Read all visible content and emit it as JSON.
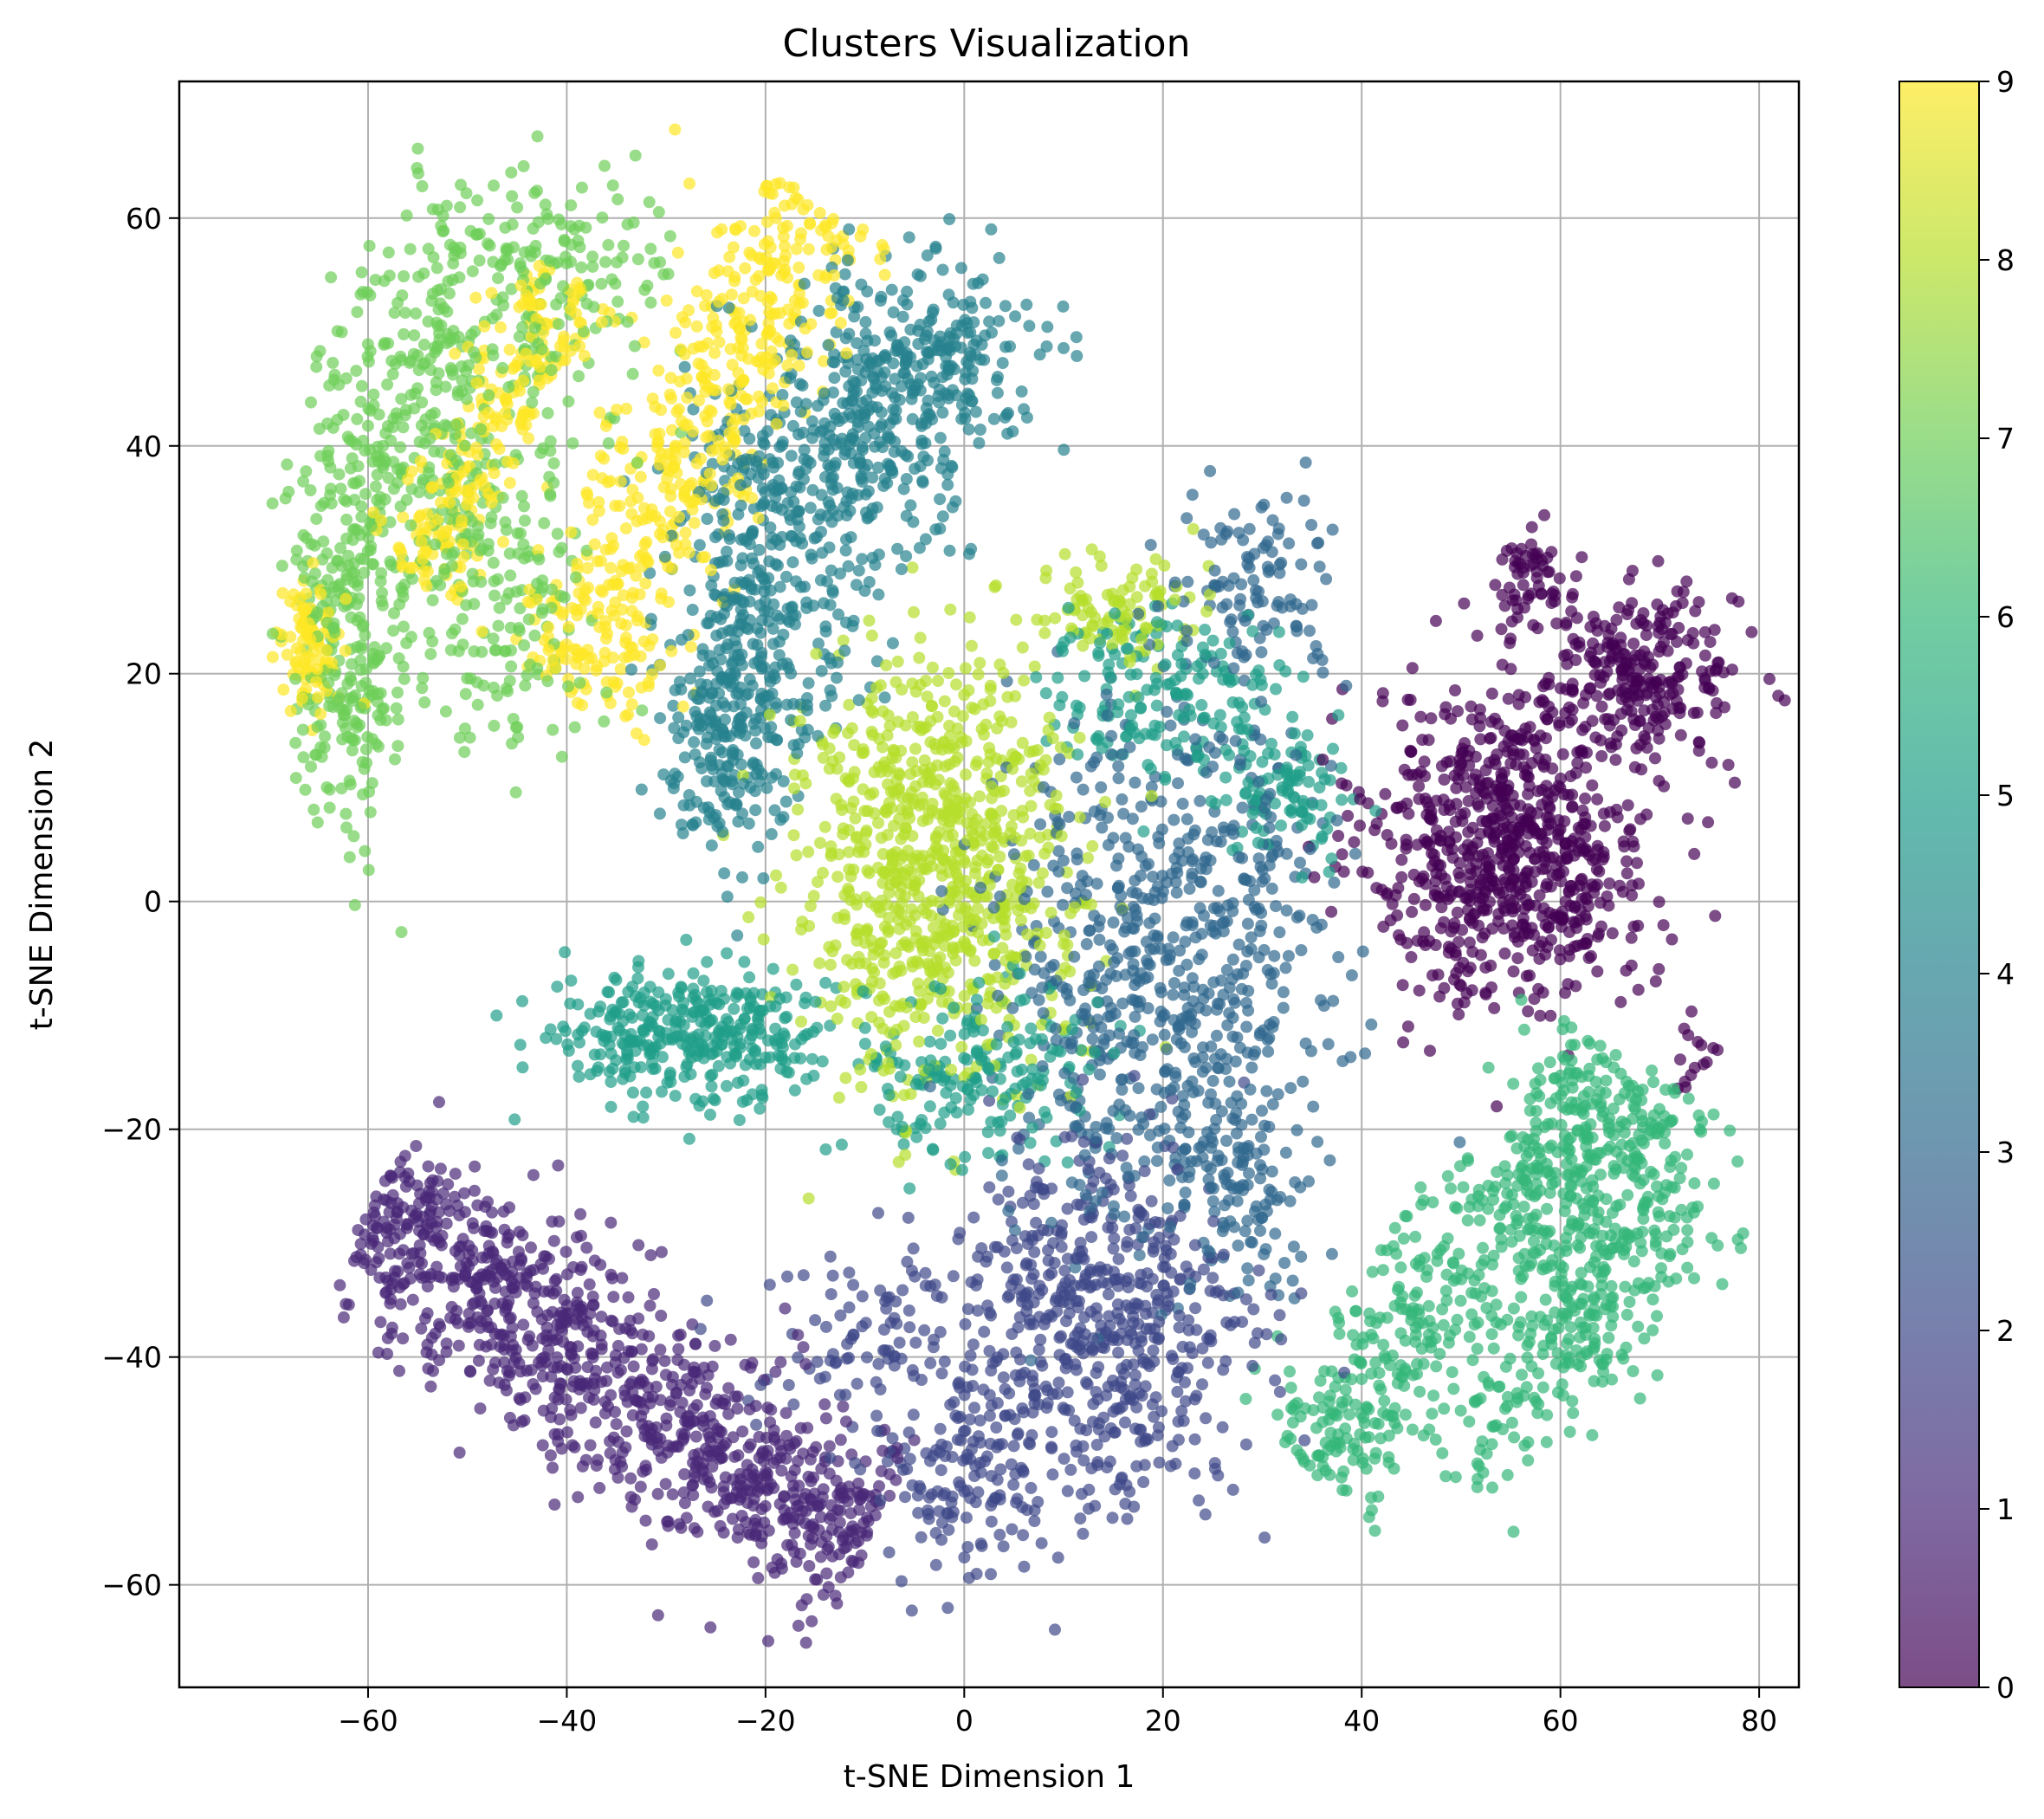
{
  "chart_data": {
    "type": "scatter",
    "title": "Clusters Visualization",
    "xlabel": "t-SNE Dimension 1",
    "ylabel": "t-SNE Dimension 2",
    "xlim": [
      -79,
      84
    ],
    "ylim": [
      -69,
      72
    ],
    "xticks": [
      -60,
      -40,
      -20,
      0,
      20,
      40,
      60,
      80
    ],
    "yticks": [
      -60,
      -40,
      -20,
      0,
      20,
      40,
      60
    ],
    "xtick_labels": [
      "−60",
      "−40",
      "−20",
      "0",
      "20",
      "40",
      "60",
      "80"
    ],
    "ytick_labels": [
      "−60",
      "−40",
      "−20",
      "0",
      "20",
      "40",
      "60"
    ],
    "grid": true,
    "colormap": "viridis",
    "point_alpha": 0.7,
    "colorbar": {
      "range": [
        0,
        9
      ],
      "ticks": [
        0,
        1,
        2,
        3,
        4,
        5,
        6,
        7,
        8,
        9
      ],
      "tick_labels": [
        "0",
        "1",
        "2",
        "3",
        "4",
        "5",
        "6",
        "7",
        "8",
        "9"
      ]
    },
    "cluster_colors": [
      "#440154",
      "#482878",
      "#3e4989",
      "#31688e",
      "#26828e",
      "#1f9e89",
      "#35b779",
      "#6ece58",
      "#b5de2b",
      "#fde725"
    ],
    "clusters": [
      {
        "label": 0,
        "color": "#440154",
        "approx_points": 1100,
        "regions": [
          {
            "cx": 55,
            "cy": 5,
            "sx": 7,
            "sy": 7,
            "n": 750
          },
          {
            "cx": 68,
            "cy": 20,
            "sx": 5,
            "sy": 3.5,
            "n": 250
          },
          {
            "cx": 57,
            "cy": 28,
            "sx": 2,
            "sy": 2.5,
            "n": 60
          },
          {
            "cx": 74,
            "cy": -13,
            "sx": 1,
            "sy": 1.5,
            "n": 15
          }
        ]
      },
      {
        "label": 1,
        "color": "#482878",
        "approx_points": 1000,
        "regions": [
          {
            "from": [
              -60,
              -27
            ],
            "to": [
              -10,
              -57
            ],
            "width": 4.5,
            "n": 1000
          }
        ]
      },
      {
        "label": 2,
        "color": "#3e4989",
        "approx_points": 800,
        "regions": [
          {
            "cx": 13,
            "cy": -38,
            "sx": 8,
            "sy": 8,
            "n": 600
          },
          {
            "cx": 0,
            "cy": -50,
            "sx": 4,
            "sy": 5,
            "n": 120
          },
          {
            "cx": -10,
            "cy": -38,
            "sx": 5,
            "sy": 5,
            "n": 80
          }
        ]
      },
      {
        "label": 3,
        "color": "#31688e",
        "approx_points": 900,
        "regions": [
          {
            "cx": 20,
            "cy": -5,
            "sx": 8,
            "sy": 12,
            "n": 700
          },
          {
            "cx": 30,
            "cy": 28,
            "sx": 4,
            "sy": 4,
            "n": 100
          },
          {
            "cx": 28,
            "cy": -25,
            "sx": 4,
            "sy": 4,
            "n": 100
          }
        ]
      },
      {
        "label": 4,
        "color": "#26828e",
        "approx_points": 1000,
        "regions": [
          {
            "cx": -20,
            "cy": 30,
            "sx": 5,
            "sy": 8,
            "n": 350
          },
          {
            "cx": -4,
            "cy": 48,
            "sx": 6,
            "sy": 4,
            "n": 250
          },
          {
            "cx": -24,
            "cy": 14,
            "sx": 3,
            "sy": 5,
            "n": 200
          },
          {
            "cx": -10,
            "cy": 40,
            "sx": 5,
            "sy": 5,
            "n": 200
          }
        ]
      },
      {
        "label": 5,
        "color": "#1f9e89",
        "approx_points": 800,
        "regions": [
          {
            "cx": -27,
            "cy": -12,
            "sx": 7,
            "sy": 3,
            "n": 350
          },
          {
            "cx": 2,
            "cy": -15,
            "sx": 6,
            "sy": 4,
            "n": 180
          },
          {
            "cx": 20,
            "cy": 18,
            "sx": 6,
            "sy": 4,
            "n": 180
          },
          {
            "cx": 33,
            "cy": 10,
            "sx": 3,
            "sy": 3,
            "n": 90
          }
        ]
      },
      {
        "label": 6,
        "color": "#35b779",
        "approx_points": 900,
        "regions": [
          {
            "from": [
              35,
              -50
            ],
            "to": [
              66,
              -15
            ],
            "width": 4,
            "n": 500
          },
          {
            "from": [
              60,
              -40
            ],
            "to": [
              70,
              -15
            ],
            "width": 4,
            "n": 250
          },
          {
            "from": [
              50,
              -52
            ],
            "to": [
              74,
              -25
            ],
            "width": 3,
            "n": 150
          }
        ]
      },
      {
        "label": 7,
        "color": "#6ece58",
        "approx_points": 900,
        "regions": [
          {
            "cx": -62,
            "cy": 25,
            "sx": 3,
            "sy": 10,
            "n": 300
          },
          {
            "cx": -54,
            "cy": 40,
            "sx": 5,
            "sy": 8,
            "n": 250
          },
          {
            "cx": -44,
            "cy": 55,
            "sx": 7,
            "sy": 5,
            "n": 200
          },
          {
            "cx": -46,
            "cy": 28,
            "sx": 5,
            "sy": 7,
            "n": 150
          }
        ]
      },
      {
        "label": 8,
        "color": "#b5de2b",
        "approx_points": 900,
        "regions": [
          {
            "cx": -3,
            "cy": 3,
            "sx": 7,
            "sy": 9,
            "n": 800
          },
          {
            "cx": 15,
            "cy": 25,
            "sx": 4,
            "sy": 3,
            "n": 100
          }
        ]
      },
      {
        "label": 9,
        "color": "#fde725",
        "approx_points": 900,
        "regions": [
          {
            "from": [
              -40,
              18
            ],
            "to": [
              -15,
              62
            ],
            "width": 4,
            "n": 550
          },
          {
            "from": [
              -55,
              28
            ],
            "to": [
              -40,
              55
            ],
            "width": 2.5,
            "n": 250
          },
          {
            "cx": -66,
            "cy": 22,
            "sx": 1.5,
            "sy": 3,
            "n": 100
          }
        ]
      }
    ]
  }
}
